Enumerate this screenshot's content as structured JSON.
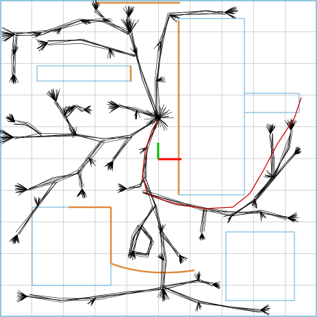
{
  "view": {
    "kind": "motion-planning-tree",
    "description_visible": false
  },
  "colors": {
    "background": "#ffffff",
    "grid": "#cfcfcf",
    "frame": "#6bb3d6",
    "obstacle_outline": "#5aaad6",
    "wall": "#e08a3a",
    "tree_edge": "#000000",
    "solution_path": "#cc0000",
    "axis_x": "#ff0000",
    "axis_y": "#00bb00"
  },
  "scene": {
    "grid_divisions": 10,
    "robot_pose_label": ""
  }
}
